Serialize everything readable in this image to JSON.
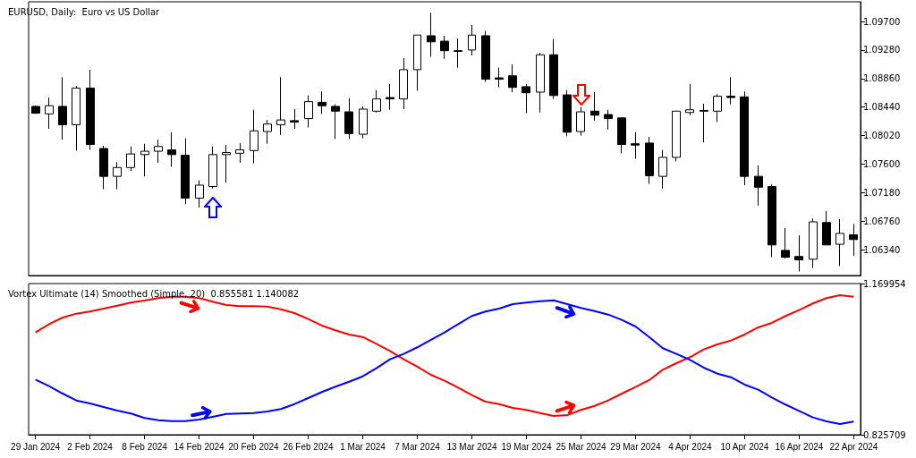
{
  "chart_data": [
    {
      "type": "candlestick",
      "title": "EURUSD, Daily:  Euro vs US Dollar",
      "color": "#000000",
      "tick_labels": "y",
      "categories": [
        null,
        null,
        null,
        null,
        null,
        null,
        null,
        null,
        null,
        null,
        null,
        null,
        null,
        null,
        null,
        null,
        null,
        null,
        null,
        null,
        null,
        null,
        null,
        null,
        null,
        null,
        null,
        null,
        null,
        null,
        null,
        null,
        null,
        null,
        null,
        null,
        null,
        null,
        null,
        null,
        null,
        null,
        null,
        null,
        null,
        null,
        null,
        null,
        null,
        null,
        null,
        null,
        null,
        null,
        null,
        null,
        null,
        null,
        null,
        null,
        null
      ],
      "ohlc": [
        [
          1.0845,
          1.0846,
          1.0834,
          1.0835
        ],
        [
          1.0834,
          1.0858,
          1.0812,
          1.0846
        ],
        [
          1.0845,
          1.0888,
          1.0796,
          1.0818
        ],
        [
          1.0818,
          1.0875,
          1.078,
          1.0872
        ],
        [
          1.0872,
          1.0899,
          1.0781,
          1.0789
        ],
        [
          1.0783,
          1.0787,
          1.0723,
          1.0742
        ],
        [
          1.0742,
          1.0763,
          1.0723,
          1.0755
        ],
        [
          1.0755,
          1.0786,
          1.075,
          1.0775
        ],
        [
          1.0774,
          1.079,
          1.0742,
          1.0779
        ],
        [
          1.0779,
          1.0796,
          1.0762,
          1.0786
        ],
        [
          1.0781,
          1.0807,
          1.0756,
          1.0774
        ],
        [
          1.0773,
          1.0798,
          1.0701,
          1.071
        ],
        [
          1.071,
          1.0736,
          1.0696,
          1.0729
        ],
        [
          1.0727,
          1.0786,
          1.0724,
          1.0774
        ],
        [
          1.0774,
          1.0788,
          1.0733,
          1.0777
        ],
        [
          1.0776,
          1.0791,
          1.0762,
          1.0781
        ],
        [
          1.078,
          1.084,
          1.0761,
          1.0809
        ],
        [
          1.0808,
          1.0825,
          1.079,
          1.0819
        ],
        [
          1.0818,
          1.0888,
          1.0803,
          1.0825
        ],
        [
          1.0824,
          1.0841,
          1.0812,
          1.0822
        ],
        [
          1.0827,
          1.0861,
          1.0814,
          1.0852
        ],
        [
          1.0851,
          1.0867,
          1.0834,
          1.0846
        ],
        [
          1.0845,
          1.0848,
          1.0797,
          1.0838
        ],
        [
          1.0837,
          1.0857,
          1.0797,
          1.0805
        ],
        [
          1.0804,
          1.0845,
          1.0798,
          1.0841
        ],
        [
          1.0838,
          1.0869,
          1.0836,
          1.0856
        ],
        [
          1.0858,
          1.0878,
          1.084,
          1.0856
        ],
        [
          1.0856,
          1.0916,
          1.0841,
          1.0899
        ],
        [
          1.0899,
          1.095,
          1.0868,
          1.095
        ],
        [
          1.0949,
          1.0983,
          1.0918,
          1.094
        ],
        [
          1.0941,
          1.0949,
          1.0915,
          1.0927
        ],
        [
          1.0927,
          1.0945,
          1.0902,
          1.0926
        ],
        [
          1.0928,
          1.0965,
          1.092,
          1.095
        ],
        [
          1.0949,
          1.0956,
          1.0881,
          1.0885
        ],
        [
          1.0887,
          1.0902,
          1.0873,
          1.0885
        ],
        [
          1.089,
          1.0907,
          1.0866,
          1.0873
        ],
        [
          1.0874,
          1.0878,
          1.0835,
          1.0865
        ],
        [
          1.0866,
          1.0924,
          1.0836,
          1.0921
        ],
        [
          1.0921,
          1.0944,
          1.0856,
          1.0861
        ],
        [
          1.0862,
          1.0869,
          1.0801,
          1.0807
        ],
        [
          1.0808,
          1.0844,
          1.0802,
          1.0837
        ],
        [
          1.0838,
          1.0866,
          1.0824,
          1.0832
        ],
        [
          1.0833,
          1.084,
          1.0811,
          1.0827
        ],
        [
          1.0828,
          1.0828,
          1.0776,
          1.0789
        ],
        [
          1.079,
          1.0807,
          1.0768,
          1.0788
        ],
        [
          1.0791,
          1.08,
          1.0731,
          1.0743
        ],
        [
          1.0742,
          1.0781,
          1.0724,
          1.077
        ],
        [
          1.077,
          1.0838,
          1.0764,
          1.0838
        ],
        [
          1.0836,
          1.0878,
          1.0832,
          1.084
        ],
        [
          1.0839,
          1.0849,
          1.0792,
          1.0838
        ],
        [
          1.0838,
          1.0863,
          1.0822,
          1.086
        ],
        [
          1.086,
          1.0888,
          1.0848,
          1.0858
        ],
        [
          1.0859,
          1.0867,
          1.0729,
          1.0742
        ],
        [
          1.0742,
          1.0758,
          1.0699,
          1.0726
        ],
        [
          1.0727,
          1.073,
          1.0623,
          1.0641
        ],
        [
          1.0633,
          1.0666,
          1.0621,
          1.0623
        ],
        [
          1.0624,
          1.0655,
          1.0602,
          1.0619
        ],
        [
          1.062,
          1.068,
          1.0607,
          1.0675
        ],
        [
          1.0674,
          1.0691,
          1.0641,
          1.0641
        ],
        [
          1.0642,
          1.0679,
          1.061,
          1.0658
        ],
        [
          1.0656,
          1.0672,
          1.0625,
          1.0649
        ]
      ],
      "ylim": [
        1.0596,
        1.0999
      ],
      "yticks": [
        {
          "value": 1.0634,
          "label": "1.06340"
        },
        {
          "value": 1.0676,
          "label": "1.06760"
        },
        {
          "value": 1.0718,
          "label": "1.07180"
        },
        {
          "value": 1.076,
          "label": "1.07600"
        },
        {
          "value": 1.0802,
          "label": "1.08020"
        },
        {
          "value": 1.0844,
          "label": "1.08440"
        },
        {
          "value": 1.0886,
          "label": "1.08860"
        },
        {
          "value": 1.0928,
          "label": "1.09280"
        },
        {
          "value": 1.097,
          "label": "1.09700"
        }
      ]
    },
    {
      "type": "line",
      "title": "Vortex Ultimate (14) Smoothed (Simple, 20)  0.855581 1.140082",
      "categories": [
        "29 Jan 2024",
        null,
        null,
        null,
        "2 Feb 2024",
        null,
        null,
        null,
        "8 Feb 2024",
        null,
        null,
        null,
        "14 Feb 2024",
        null,
        null,
        null,
        "20 Feb 2024",
        null,
        null,
        null,
        "26 Feb 2024",
        null,
        null,
        null,
        "1 Mar 2024",
        null,
        null,
        null,
        "7 Mar 2024",
        null,
        null,
        null,
        "13 Mar 2024",
        null,
        null,
        null,
        "19 Mar 2024",
        null,
        null,
        null,
        "25 Mar 2024",
        null,
        null,
        null,
        "29 Mar 2024",
        null,
        null,
        null,
        "4 Apr 2024",
        null,
        null,
        null,
        "10 Apr 2024",
        null,
        null,
        null,
        "16 Apr 2024",
        null,
        null,
        null,
        "22 Apr 2024"
      ],
      "series": [
        {
          "color": "#ff0000",
          "values": [
            1.0586,
            1.0777,
            1.0926,
            1.1014,
            1.1062,
            1.113,
            1.1197,
            1.1266,
            1.1313,
            1.1368,
            1.1401,
            1.1401,
            1.1368,
            1.1286,
            1.1211,
            1.1185,
            1.1185,
            1.1176,
            1.1115,
            1.1028,
            1.0891,
            1.0743,
            1.0635,
            1.0539,
            1.0484,
            1.0329,
            1.0166,
            0.9975,
            0.9806,
            0.9622,
            0.9486,
            0.9331,
            0.916,
            0.9011,
            0.8956,
            0.8869,
            0.8822,
            0.8752,
            0.8685,
            0.8706,
            0.8822,
            0.8915,
            0.9038,
            0.9194,
            0.9343,
            0.95,
            0.9738,
            0.9887,
            1.0024,
            1.0199,
            1.0315,
            1.0402,
            1.0539,
            1.0702,
            1.0804,
            1.0961,
            1.1095,
            1.1246,
            1.1368,
            1.1435,
            1.1401
          ]
        },
        {
          "color": "#0000ff",
          "values": [
            0.9514,
            0.9363,
            0.9194,
            0.9037,
            0.897,
            0.8889,
            0.8807,
            0.874,
            0.8638,
            0.8589,
            0.8569,
            0.8569,
            0.8603,
            0.8665,
            0.8732,
            0.874,
            0.8752,
            0.8787,
            0.8842,
            0.8956,
            0.9092,
            0.9229,
            0.9351,
            0.9465,
            0.9587,
            0.9771,
            0.9975,
            1.0097,
            1.0248,
            1.0417,
            1.0586,
            1.0777,
            1.0961,
            1.1062,
            1.113,
            1.1231,
            1.1266,
            1.1299,
            1.1319,
            1.1231,
            1.1144,
            1.1075,
            1.0993,
            1.0871,
            1.0722,
            1.0484,
            1.0227,
            1.0097,
            0.9962,
            0.9785,
            0.9649,
            0.9567,
            0.9398,
            0.9282,
            0.9107,
            0.8944,
            0.8801,
            0.8651,
            0.8563,
            0.8502,
            0.8556
          ]
        }
      ],
      "ylim": [
        0.825709,
        1.169954
      ],
      "yticks": [
        0.825709,
        1.169954
      ]
    }
  ]
}
